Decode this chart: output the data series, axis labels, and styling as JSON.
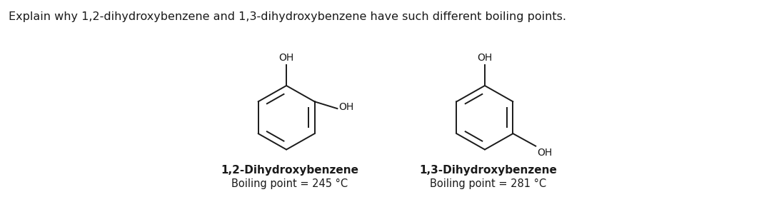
{
  "question_text": "Explain why 1,2-dihydroxybenzene and 1,3-dihydroxybenzene have such different boiling points.",
  "compound1_name": "1,2-Dihydroxybenzene",
  "compound1_bp": "Boiling point = 245 °C",
  "compound2_name": "1,3-Dihydroxybenzene",
  "compound2_bp": "Boiling point = 281 °C",
  "background_color": "#ffffff",
  "text_color": "#1a1a1a",
  "line_color": "#1a1a1a",
  "question_fontsize": 11.5,
  "label_fontsize": 11,
  "bp_fontsize": 10.5,
  "oh_fontsize": 10,
  "fig_width": 10.84,
  "fig_height": 3.11,
  "dpi": 100
}
